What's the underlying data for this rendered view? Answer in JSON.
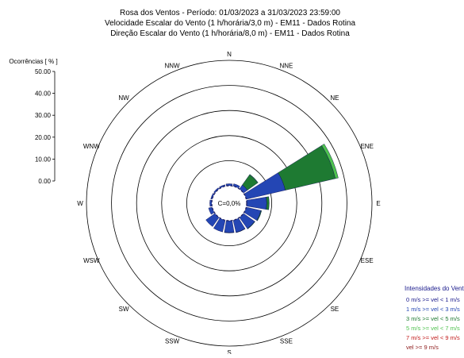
{
  "chart_data": {
    "type": "wind-rose",
    "title_lines": [
      "Rosa dos Ventos - Período: 01/03/2023 a 31/03/2023 23:59:00",
      "Velocidade Escalar do Vento (1 h/horária/3,0 m) - EM11 - Dados Rotina",
      "Direção Escalar do Vento (1 h/horária/8,0 m) - EM11 - Dados Rotina"
    ],
    "ylabel": "Ocorrências [ % ]",
    "ticks": [
      "50.00",
      "40.00",
      "30.00",
      "20.00",
      "10.00",
      "0.00"
    ],
    "tick_values": [
      50,
      40,
      30,
      20,
      10,
      0
    ],
    "rmax": 50,
    "calm_label": "C=0,0%",
    "directions": [
      "N",
      "NNE",
      "NE",
      "ENE",
      "E",
      "ESE",
      "SE",
      "SSE",
      "S",
      "SSW",
      "SW",
      "WSW",
      "W",
      "WNW",
      "NW",
      "NNW"
    ],
    "legend_title": "Intensidades do Vento",
    "series": [
      {
        "name": "0 m/s >= vel < 1 m/s",
        "color": "#1a1a8c",
        "values": [
          0,
          0,
          0,
          0,
          0,
          0,
          0,
          0,
          0,
          0,
          0,
          0,
          0,
          0,
          0,
          0
        ]
      },
      {
        "name": "1 m/s >= vel < 3 m/s",
        "color": "#2446b4",
        "values": [
          0.8,
          1.0,
          2.0,
          16.0,
          8.0,
          6.0,
          5.5,
          5.0,
          4.8,
          4.8,
          4.5,
          1.5,
          0.8,
          0.6,
          0.6,
          0.6
        ]
      },
      {
        "name": "3 m/s >= vel < 5 m/s",
        "color": "#1e7a32",
        "values": [
          0,
          0,
          5.0,
          20.5,
          1.0,
          0.3,
          0.2,
          0.1,
          0.1,
          0,
          0,
          0,
          0,
          0,
          0,
          0
        ]
      },
      {
        "name": "5 m/s >= vel < 7 m/s",
        "color": "#4fc24f",
        "values": [
          0,
          0,
          0.2,
          1.2,
          0,
          0,
          0,
          0,
          0,
          0,
          0,
          0,
          0,
          0,
          0,
          0
        ]
      },
      {
        "name": "7 m/s >= vel < 9 m/s",
        "color": "#c21a1a",
        "values": [
          0,
          0,
          0,
          0,
          0,
          0,
          0,
          0,
          0,
          0,
          0,
          0,
          0,
          0,
          0,
          0
        ]
      },
      {
        "name": "vel >= 9 m/s",
        "color": "#8c1a1a",
        "values": [
          0,
          0,
          0,
          0,
          0,
          0,
          0,
          0,
          0,
          0,
          0,
          0,
          0,
          0,
          0,
          0
        ]
      }
    ]
  }
}
